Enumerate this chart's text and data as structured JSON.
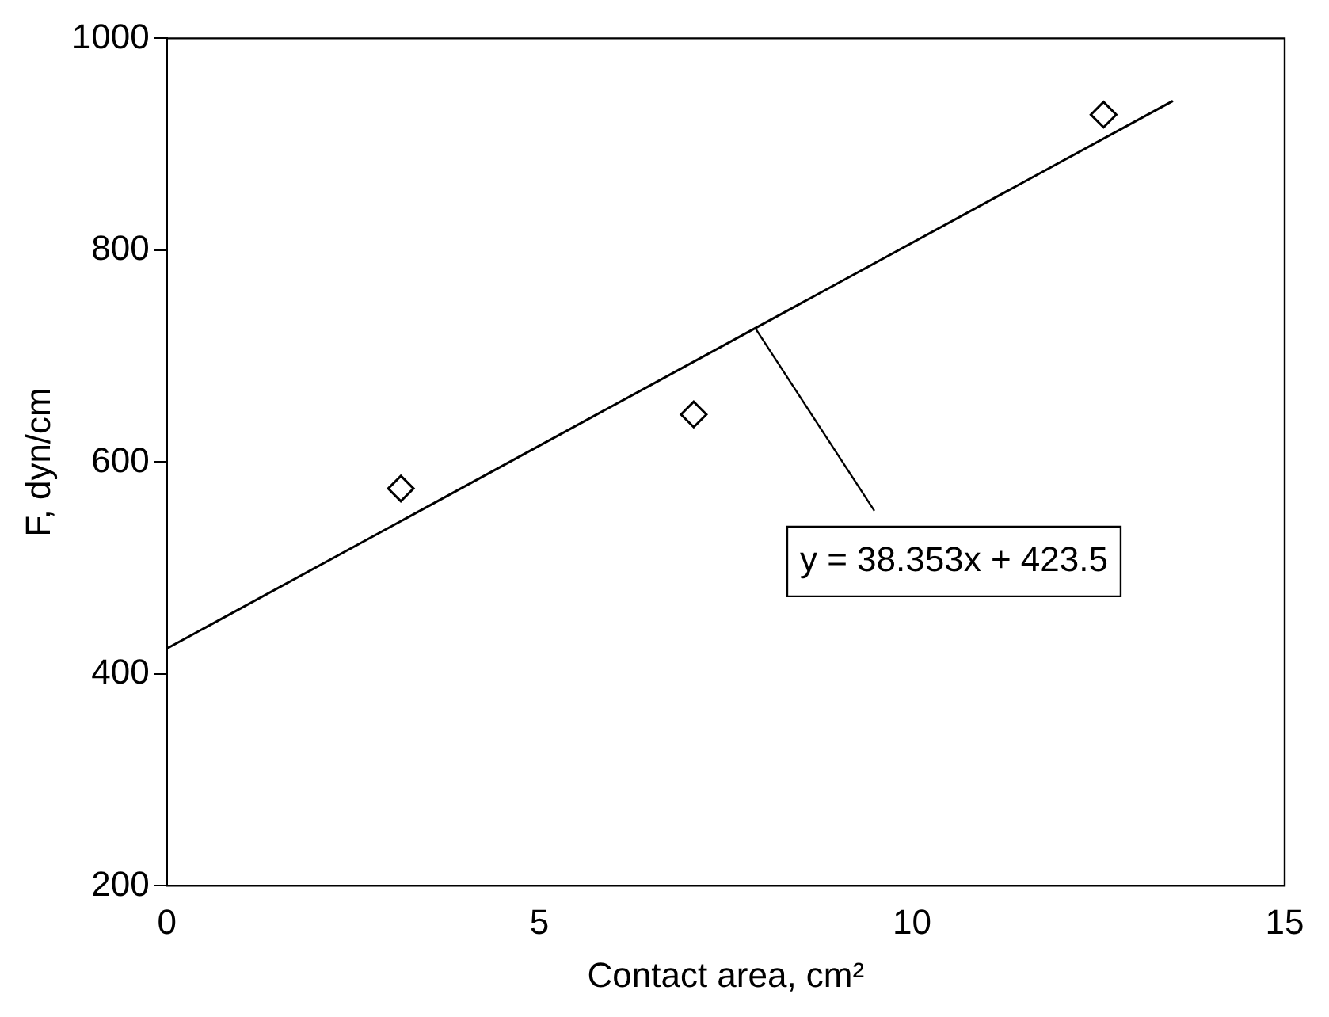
{
  "chart_data": {
    "type": "scatter",
    "xlabel": "Contact area, cm²",
    "ylabel": "F, dyn/cm",
    "xlim": [
      0,
      15
    ],
    "xticks": [
      0,
      5,
      10,
      15
    ],
    "ylim": [
      200,
      1000
    ],
    "yticks": [
      200,
      400,
      600,
      800,
      1000
    ],
    "grid": false,
    "legend": false,
    "series": [
      {
        "type": "scatter",
        "color": "#000000",
        "marker": "diamond",
        "x": [
          3.14,
          7.07,
          12.57
        ],
        "values": [
          575,
          645,
          928
        ]
      },
      {
        "type": "line",
        "color": "#000000",
        "marker": "none",
        "x": [
          0,
          13.5
        ],
        "values": [
          424,
          941
        ]
      }
    ],
    "annotations": [
      {
        "text": "y = 38.353x + 423.5",
        "x": 7.9,
        "y": 726
      }
    ]
  }
}
